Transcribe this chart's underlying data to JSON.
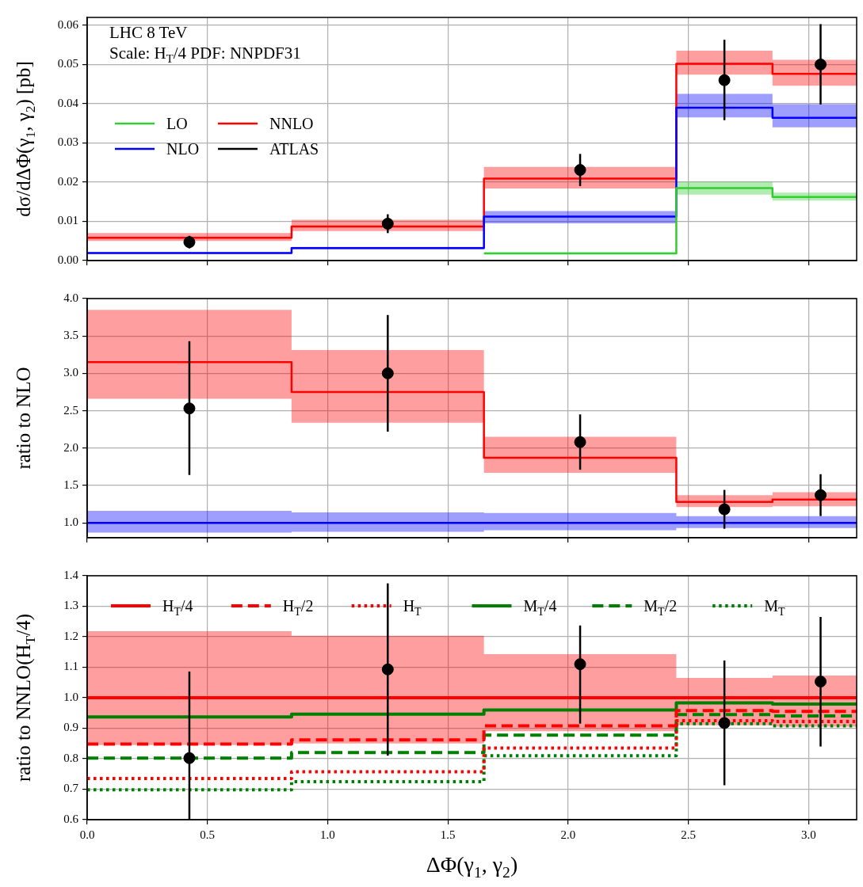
{
  "chart_data": [
    {
      "type": "step",
      "ylabel": "dσ/dΔΦ(γ$_{1}$, γ$_{2}$) [pb]",
      "annotations": [
        "LHC 8 TeV",
        "Scale: H$_{T}$/4 PDF: NNPDF31"
      ],
      "xlim": [
        0,
        3.2
      ],
      "xticks": [
        {
          "value": 0,
          "label": null
        },
        {
          "value": 0.5,
          "label": null
        },
        {
          "value": 1,
          "label": null
        },
        {
          "value": 1.5,
          "label": null
        },
        {
          "value": 2,
          "label": null
        },
        {
          "value": 2.5,
          "label": null
        },
        {
          "value": 3,
          "label": null
        }
      ],
      "ylim": [
        0,
        0.062
      ],
      "yticks": [
        {
          "value": 0,
          "label": "0.00"
        },
        {
          "value": 0.01,
          "label": "0.01"
        },
        {
          "value": 0.02,
          "label": "0.02"
        },
        {
          "value": 0.03,
          "label": "0.03"
        },
        {
          "value": 0.04,
          "label": "0.04"
        },
        {
          "value": 0.05,
          "label": "0.05"
        },
        {
          "value": 0.06,
          "label": "0.06"
        }
      ],
      "grid": true,
      "legend": "top left",
      "tick_labels": "y",
      "series": [
        {
          "name": "LO",
          "type": "step",
          "color": "#33cc33",
          "x": [
            1.65,
            2.45,
            2.85,
            3.2
          ],
          "values": [
            0.0018,
            0.0185,
            0.0162,
            0.0162
          ],
          "lower": [
            0.0016,
            0.0168,
            0.0153,
            0.0153
          ],
          "upper": [
            0.0021,
            0.0201,
            0.0173,
            0.0173
          ]
        },
        {
          "name": "NLO",
          "type": "step",
          "color": "#0000ff",
          "x": [
            0,
            0.85,
            1.65,
            2.45,
            2.85,
            3.2
          ],
          "values": [
            0.0019,
            0.0032,
            0.0112,
            0.039,
            0.0364,
            0.0364
          ],
          "lower": [
            0.0017,
            0.0029,
            0.0095,
            0.0365,
            0.034,
            0.034
          ],
          "upper": [
            0.0021,
            0.0035,
            0.0126,
            0.0425,
            0.0399,
            0.0399
          ]
        },
        {
          "name": "NNLO",
          "type": "step",
          "color": "#ff0000",
          "x": [
            0,
            0.85,
            1.65,
            2.45,
            2.85,
            3.2
          ],
          "values": [
            0.0058,
            0.0087,
            0.0209,
            0.0502,
            0.0476,
            0.0476
          ],
          "lower": [
            0.005,
            0.0075,
            0.0184,
            0.0474,
            0.0446,
            0.0446
          ],
          "upper": [
            0.007,
            0.0104,
            0.0239,
            0.0535,
            0.0512,
            0.0512
          ]
        },
        {
          "name": "ATLAS",
          "type": "scatter",
          "color": "#000000",
          "marker": "circle",
          "x": [
            0.425,
            1.25,
            2.05,
            2.65,
            3.05
          ],
          "values": [
            0.0047,
            0.0094,
            0.0231,
            0.046,
            0.05
          ],
          "errors": [
            [
              0.0031,
              0.0063
            ],
            [
              0.007,
              0.0118
            ],
            [
              0.019,
              0.0272
            ],
            [
              0.0358,
              0.0563
            ],
            [
              0.0398,
              0.0603
            ]
          ]
        }
      ]
    },
    {
      "type": "step",
      "ylabel": "ratio to NLO",
      "xlim": [
        0,
        3.2
      ],
      "xticks": [
        {
          "value": 0,
          "label": null
        },
        {
          "value": 0.5,
          "label": null
        },
        {
          "value": 1,
          "label": null
        },
        {
          "value": 1.5,
          "label": null
        },
        {
          "value": 2,
          "label": null
        },
        {
          "value": 2.5,
          "label": null
        },
        {
          "value": 3,
          "label": null
        }
      ],
      "ylim": [
        0.8,
        4
      ],
      "yticks": [
        {
          "value": 1,
          "label": "1.0"
        },
        {
          "value": 1.5,
          "label": "1.5"
        },
        {
          "value": 2,
          "label": "2.0"
        },
        {
          "value": 2.5,
          "label": "2.5"
        },
        {
          "value": 3,
          "label": "3.0"
        },
        {
          "value": 3.5,
          "label": "3.5"
        },
        {
          "value": 4,
          "label": "4.0"
        }
      ],
      "grid": true,
      "tick_labels": "y",
      "series": [
        {
          "type": "step",
          "color": "#0000ff",
          "x": [
            0,
            0.85,
            1.65,
            2.45,
            2.85,
            3.2
          ],
          "values": [
            1,
            1,
            1,
            1,
            1,
            1
          ],
          "lower": [
            0.87,
            0.88,
            0.9,
            0.93,
            0.93,
            0.93
          ],
          "upper": [
            1.16,
            1.14,
            1.13,
            1.09,
            1.09,
            1.09
          ]
        },
        {
          "type": "step",
          "color": "#ff0000",
          "x": [
            0,
            0.85,
            1.65,
            2.45,
            2.85,
            3.2
          ],
          "values": [
            3.15,
            2.75,
            1.87,
            1.28,
            1.31,
            1.31
          ],
          "lower": [
            2.66,
            2.34,
            1.67,
            1.21,
            1.22,
            1.22
          ],
          "upper": [
            3.85,
            3.31,
            2.15,
            1.37,
            1.41,
            1.41
          ]
        },
        {
          "type": "scatter",
          "color": "#000000",
          "marker": "circle",
          "x": [
            0.425,
            1.25,
            2.05,
            2.65,
            3.05
          ],
          "values": [
            2.53,
            3,
            2.08,
            1.18,
            1.37
          ],
          "errors": [
            [
              1.64,
              3.43
            ],
            [
              2.22,
              3.78
            ],
            [
              1.71,
              2.45
            ],
            [
              0.92,
              1.44
            ],
            [
              1.09,
              1.65
            ]
          ]
        }
      ]
    },
    {
      "type": "step",
      "ylabel": "ratio to NNLO(H$_{T}$/4)",
      "xlabel": "ΔΦ(γ$_{1}$, γ$_{2}$)",
      "xlim": [
        0,
        3.2
      ],
      "xticks": [
        {
          "value": 0,
          "label": "0.0"
        },
        {
          "value": 0.5,
          "label": "0.5"
        },
        {
          "value": 1,
          "label": "1.0"
        },
        {
          "value": 1.5,
          "label": "1.5"
        },
        {
          "value": 2,
          "label": "2.0"
        },
        {
          "value": 2.5,
          "label": "2.5"
        },
        {
          "value": 3,
          "label": "3.0"
        }
      ],
      "ylim": [
        0.6,
        1.4
      ],
      "yticks": [
        {
          "value": 0.6,
          "label": "0.6"
        },
        {
          "value": 0.7,
          "label": "0.7"
        },
        {
          "value": 0.8,
          "label": "0.8"
        },
        {
          "value": 0.9,
          "label": "0.9"
        },
        {
          "value": 1,
          "label": "1.0"
        },
        {
          "value": 1.1,
          "label": "1.1"
        },
        {
          "value": 1.2,
          "label": "1.2"
        },
        {
          "value": 1.3,
          "label": "1.3"
        },
        {
          "value": 1.4,
          "label": "1.4"
        }
      ],
      "grid": true,
      "legend": "top",
      "series": [
        {
          "name": "H$_{T}$/4",
          "type": "step",
          "color": "#ff0000",
          "line_style": "solid",
          "x": [
            0,
            0.85,
            1.65,
            2.45,
            2.85,
            3.2
          ],
          "values": [
            1,
            1,
            1,
            1,
            1,
            1
          ],
          "lower": [
            0.845,
            0.85,
            0.89,
            0.91,
            0.905,
            0.905
          ],
          "upper": [
            1.218,
            1.203,
            1.143,
            1.065,
            1.073,
            1.073
          ]
        },
        {
          "name": "H$_{T}$/2",
          "type": "step",
          "color": "#ff0000",
          "line_style": "dashed",
          "x": [
            0,
            0.85,
            1.65,
            2.45,
            2.85,
            3.2
          ],
          "values": [
            0.848,
            0.862,
            0.908,
            0.958,
            0.955,
            0.955
          ]
        },
        {
          "name": "H$_{T}$",
          "type": "step",
          "color": "#ff0000",
          "line_style": "dotted",
          "x": [
            0,
            0.85,
            1.65,
            2.45,
            2.85,
            3.2
          ],
          "values": [
            0.735,
            0.757,
            0.835,
            0.925,
            0.922,
            0.922
          ]
        },
        {
          "name": "M$_{T}$/4",
          "type": "step",
          "color": "#008000",
          "line_style": "solid",
          "x": [
            0,
            0.85,
            1.65,
            2.45,
            2.85,
            3.2
          ],
          "values": [
            0.937,
            0.946,
            0.96,
            0.983,
            0.979,
            0.979
          ]
        },
        {
          "name": "M$_{T}$/2",
          "type": "step",
          "color": "#008000",
          "line_style": "dashed",
          "x": [
            0,
            0.85,
            1.65,
            2.45,
            2.85,
            3.2
          ],
          "values": [
            0.802,
            0.82,
            0.877,
            0.945,
            0.94,
            0.94
          ]
        },
        {
          "name": "M$_{T}$",
          "type": "step",
          "color": "#008000",
          "line_style": "dotted",
          "x": [
            0,
            0.85,
            1.65,
            2.45,
            2.85,
            3.2
          ],
          "values": [
            0.698,
            0.725,
            0.81,
            0.915,
            0.908,
            0.908
          ]
        },
        {
          "type": "scatter",
          "color": "#000000",
          "marker": "circle",
          "x": [
            0.425,
            1.25,
            2.05,
            2.65,
            3.05
          ],
          "values": [
            0.802,
            1.093,
            1.11,
            0.917,
            1.053
          ],
          "errors": [
            [
              0.6,
              1.086
            ],
            [
              0.81,
              1.375
            ],
            [
              0.915,
              1.237
            ],
            [
              0.713,
              1.122
            ],
            [
              0.84,
              1.265
            ]
          ]
        }
      ]
    }
  ]
}
